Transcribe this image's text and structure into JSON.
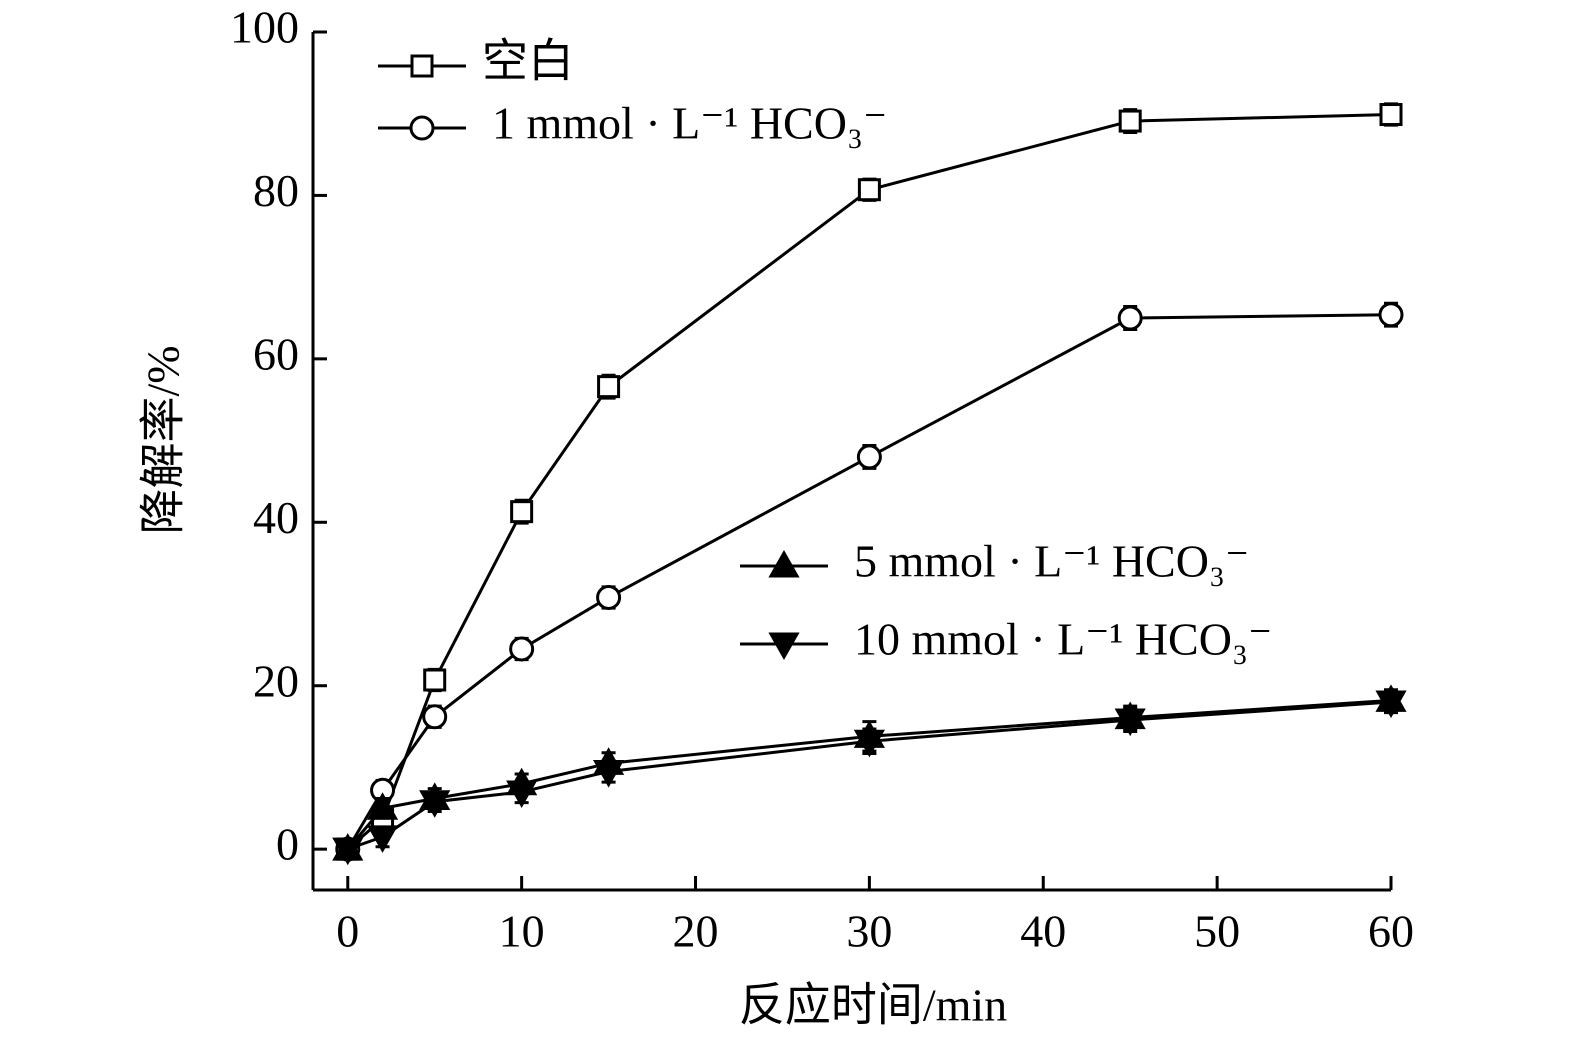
{
  "chart_data": {
    "type": "line",
    "x_label": "反应时间/min",
    "y_label": "降解率/%",
    "x": [
      0,
      2,
      5,
      10,
      15,
      30,
      45,
      60
    ],
    "series": [
      {
        "name": "空白",
        "color": "#000000",
        "marker": "square",
        "marker_fill": "none",
        "values": [
          0,
          3.7,
          20.7,
          41.3,
          56.6,
          80.7,
          89.1,
          89.9
        ],
        "errors": [
          1.2,
          1.2,
          1.3,
          1.4,
          1.4,
          1.3,
          1.4,
          1.3
        ]
      },
      {
        "name": "1 mmol · L⁻¹ HCO₃⁻",
        "color": "#000000",
        "marker": "circle",
        "marker_fill": "none",
        "values": [
          0,
          7.2,
          16.2,
          24.5,
          30.8,
          48.0,
          65.0,
          65.4
        ],
        "errors": [
          1.2,
          1.2,
          1.3,
          1.3,
          1.3,
          1.4,
          1.4,
          1.4
        ]
      },
      {
        "name": "5 mmol · L⁻¹ HCO₃⁻",
        "color": "#000000",
        "marker": "triangle-up",
        "marker_fill": "#000000",
        "values": [
          0,
          5.0,
          6.2,
          8.0,
          10.5,
          13.8,
          16.1,
          18.2
        ],
        "errors": [
          1.2,
          1.2,
          1.2,
          1.2,
          1.3,
          1.8,
          1.4,
          1.3
        ]
      },
      {
        "name": "10 mmol · L⁻¹ HCO₃⁻",
        "color": "#000000",
        "marker": "triangle-down",
        "marker_fill": "#000000",
        "values": [
          0,
          1.5,
          5.8,
          7.0,
          9.5,
          13.2,
          15.8,
          18.0
        ],
        "errors": [
          1.2,
          1.2,
          1.2,
          1.3,
          1.3,
          1.5,
          1.4,
          1.3
        ]
      }
    ],
    "xlim": [
      -2,
      60
    ],
    "xticks": [
      0,
      10,
      20,
      30,
      40,
      50,
      60
    ],
    "ylim": [
      -5,
      100
    ],
    "yticks": [
      0,
      20,
      40,
      60,
      80,
      100
    ],
    "grid": false
  }
}
